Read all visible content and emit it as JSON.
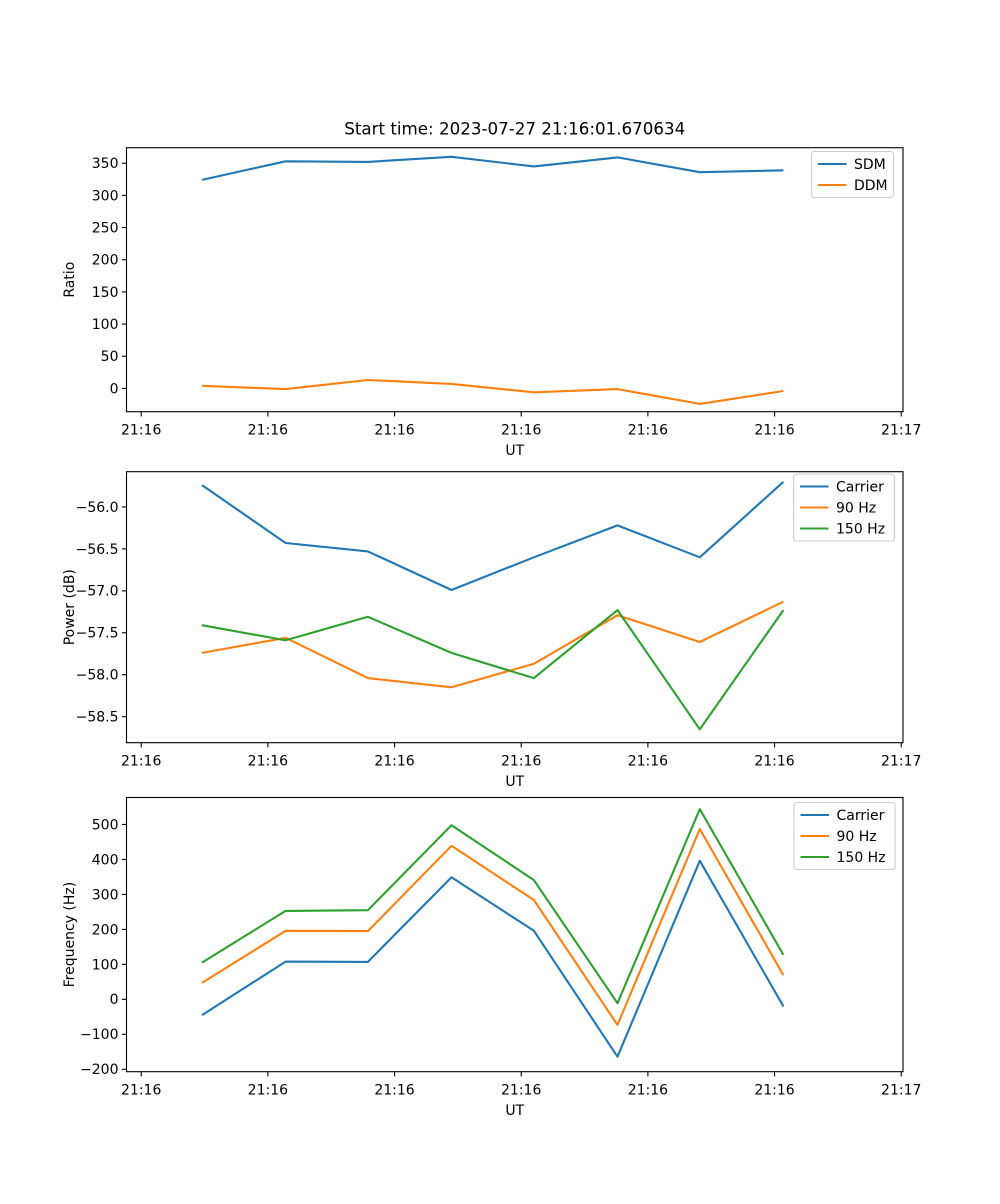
{
  "figure": {
    "title": "Start time: 2023-07-27 21:16:01.670634",
    "background": "#ffffff",
    "text_color": "#000000"
  },
  "colors": {
    "blue": "#1f77b4",
    "orange": "#ff7f0e",
    "green": "#2ca02c"
  },
  "chart_data": [
    {
      "type": "line",
      "title": "Start time: 2023-07-27 21:16:01.670634",
      "xlabel": "UT",
      "ylabel": "Ratio",
      "grid": false,
      "xlim_seconds": [
        -1.16,
        60.14
      ],
      "ylim": [
        -36.2,
        374.1
      ],
      "x_seconds": [
        4.8,
        11.4,
        17.9,
        24.5,
        31.0,
        37.6,
        44.1,
        50.7
      ],
      "xticks": {
        "seconds": [
          0,
          10,
          20,
          30,
          40,
          50,
          60
        ],
        "labels": [
          "21:16",
          "21:16",
          "21:16",
          "21:16",
          "21:16",
          "21:16",
          "21:17"
        ]
      },
      "yticks": {
        "values": [
          0,
          50,
          100,
          150,
          200,
          250,
          300,
          350
        ],
        "labels": [
          "0",
          "50",
          "100",
          "150",
          "200",
          "250",
          "300",
          "350"
        ]
      },
      "legend": {
        "position": "upper right",
        "entries": [
          "SDM",
          "DDM"
        ]
      },
      "series": [
        {
          "name": "SDM",
          "color": "#1f77b4",
          "values": [
            324,
            353,
            352,
            360,
            345,
            359,
            336,
            339
          ]
        },
        {
          "name": "DDM",
          "color": "#ff7f0e",
          "values": [
            4,
            -1,
            13,
            7,
            -6,
            -1,
            -24,
            -4
          ]
        }
      ]
    },
    {
      "type": "line",
      "title": "",
      "xlabel": "UT",
      "ylabel": "Power (dB)",
      "grid": false,
      "xlim_seconds": [
        -1.16,
        60.14
      ],
      "ylim": [
        -58.81,
        -55.58
      ],
      "x_seconds": [
        4.8,
        11.4,
        17.9,
        24.5,
        31.0,
        37.6,
        44.1,
        50.7
      ],
      "xticks": {
        "seconds": [
          0,
          10,
          20,
          30,
          40,
          50,
          60
        ],
        "labels": [
          "21:16",
          "21:16",
          "21:16",
          "21:16",
          "21:16",
          "21:16",
          "21:17"
        ]
      },
      "yticks": {
        "values": [
          -56.0,
          -56.5,
          -57.0,
          -57.5,
          -58.0,
          -58.5
        ],
        "labels": [
          "−56.0",
          "−56.5",
          "−57.0",
          "−57.5",
          "−58.0",
          "−58.5"
        ]
      },
      "legend": {
        "position": "upper right",
        "entries": [
          "Carrier",
          "90 Hz",
          "150 Hz"
        ]
      },
      "series": [
        {
          "name": "Carrier",
          "color": "#1f77b4",
          "values": [
            -55.74,
            -56.43,
            -56.53,
            -56.99,
            -56.6,
            -56.22,
            -56.6,
            -55.7
          ]
        },
        {
          "name": "90 Hz",
          "color": "#ff7f0e",
          "values": [
            -57.74,
            -57.56,
            -58.04,
            -58.15,
            -57.87,
            -57.29,
            -57.61,
            -57.13
          ]
        },
        {
          "name": "150 Hz",
          "color": "#2ca02c",
          "values": [
            -57.41,
            -57.59,
            -57.31,
            -57.74,
            -58.04,
            -57.23,
            -58.65,
            -57.23
          ]
        }
      ]
    },
    {
      "type": "line",
      "title": "",
      "xlabel": "UT",
      "ylabel": "Frequency (Hz)",
      "grid": false,
      "xlim_seconds": [
        -1.16,
        60.14
      ],
      "ylim": [
        -206.9,
        577.1
      ],
      "x_seconds": [
        4.8,
        11.4,
        17.9,
        24.5,
        31.0,
        37.6,
        44.1,
        50.7
      ],
      "xticks": {
        "seconds": [
          0,
          10,
          20,
          30,
          40,
          50,
          60
        ],
        "labels": [
          "21:16",
          "21:16",
          "21:16",
          "21:16",
          "21:16",
          "21:16",
          "21:17"
        ]
      },
      "yticks": {
        "values": [
          -200,
          -100,
          0,
          100,
          200,
          300,
          400,
          500
        ],
        "labels": [
          "−200",
          "−100",
          "0",
          "100",
          "200",
          "300",
          "400",
          "500"
        ]
      },
      "legend": {
        "position": "upper right",
        "entries": [
          "Carrier",
          "90 Hz",
          "150 Hz"
        ]
      },
      "series": [
        {
          "name": "Carrier",
          "color": "#1f77b4",
          "values": [
            -45,
            108,
            107,
            349,
            196,
            -164,
            396,
            -20
          ]
        },
        {
          "name": "90 Hz",
          "color": "#ff7f0e",
          "values": [
            47,
            196,
            195,
            439,
            284,
            -73,
            487,
            69
          ]
        },
        {
          "name": "150 Hz",
          "color": "#2ca02c",
          "values": [
            105,
            253,
            255,
            498,
            341,
            -11,
            544,
            127
          ]
        }
      ]
    }
  ]
}
